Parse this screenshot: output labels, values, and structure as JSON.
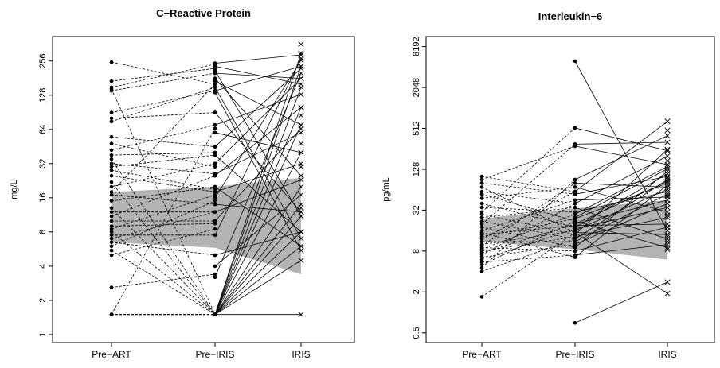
{
  "chart_data": [
    {
      "type": "line",
      "title": "C−Reactive Protein",
      "ylabel": "mg/L",
      "xlabel": "",
      "categories": [
        "Pre−ART",
        "Pre−IRIS",
        "IRIS"
      ],
      "y_scale": "log2",
      "ylim": [
        0.85,
        420
      ],
      "yticks": [
        1,
        2,
        4,
        8,
        16,
        32,
        64,
        128,
        256
      ],
      "ytick_labels": [
        "1",
        "2",
        "4",
        "8",
        "16",
        "32",
        "64",
        "128",
        "256"
      ],
      "band": {
        "color": "#b3b3b3",
        "upper": [
          18,
          20,
          24
        ],
        "lower": [
          6.5,
          5.8,
          3.4
        ]
      },
      "segments": {
        "pre_art_to_pre_iris": [
          [
            250,
            160
          ],
          [
            170,
            220
          ],
          [
            150,
            240
          ],
          [
            145,
            1.5
          ],
          [
            140,
            200
          ],
          [
            90,
            140
          ],
          [
            80,
            90
          ],
          [
            75,
            150
          ],
          [
            55,
            45
          ],
          [
            48,
            30
          ],
          [
            42,
            70
          ],
          [
            38,
            40
          ],
          [
            35,
            1.5
          ],
          [
            32,
            26
          ],
          [
            30,
            38
          ],
          [
            28,
            19
          ],
          [
            25,
            18
          ],
          [
            22,
            1.5
          ],
          [
            20,
            32
          ],
          [
            18,
            160
          ],
          [
            17,
            14
          ],
          [
            15,
            20
          ],
          [
            13,
            1.5
          ],
          [
            12,
            12
          ],
          [
            11,
            25
          ],
          [
            10,
            10
          ],
          [
            9,
            9.5
          ],
          [
            8.5,
            17
          ],
          [
            8,
            1.5
          ],
          [
            7.5,
            7.5
          ],
          [
            7,
            12
          ],
          [
            6.5,
            5
          ],
          [
            6,
            15
          ],
          [
            5.5,
            1.5
          ],
          [
            5,
            8.5
          ],
          [
            2.6,
            3.4
          ],
          [
            1.5,
            1.5
          ],
          [
            1.5,
            1.5
          ],
          [
            1.5,
            65
          ],
          [
            1.5,
            1.5
          ]
        ],
        "pre_iris_to_iris": [
          [
            245,
            290
          ],
          [
            230,
            160
          ],
          [
            210,
            11
          ],
          [
            200,
            180
          ],
          [
            180,
            25
          ],
          [
            170,
            70
          ],
          [
            150,
            7
          ],
          [
            140,
            230
          ],
          [
            135,
            5.5
          ],
          [
            90,
            12
          ],
          [
            70,
            130
          ],
          [
            60,
            40
          ],
          [
            45,
            220
          ],
          [
            38,
            8
          ],
          [
            32,
            180
          ],
          [
            26,
            60
          ],
          [
            25,
            100
          ],
          [
            20,
            6
          ],
          [
            18,
            32
          ],
          [
            16,
            260
          ],
          [
            14,
            12
          ],
          [
            12,
            23
          ],
          [
            10,
            65
          ],
          [
            7.5,
            270
          ],
          [
            5,
            8
          ],
          [
            4,
            17
          ],
          [
            3.2,
            200
          ],
          [
            1.5,
            8
          ],
          [
            1.5,
            70
          ],
          [
            1.5,
            150
          ],
          [
            1.5,
            1.5
          ],
          [
            1.5,
            40
          ],
          [
            1.5,
            14
          ],
          [
            1.5,
            6
          ],
          [
            1.5,
            230
          ],
          [
            1.5,
            20
          ],
          [
            1.5,
            100
          ],
          [
            1.5,
            4.5
          ],
          [
            1.5,
            300
          ],
          [
            1.5,
            11
          ]
        ],
        "iris_extra": [
          360,
          230,
          180,
          130,
          100,
          85,
          48,
          30,
          25,
          13
        ]
      }
    },
    {
      "type": "line",
      "title": "Interleukin−6",
      "ylabel": "pg/mL",
      "xlabel": "",
      "categories": [
        "Pre−ART",
        "Pre−IRIS",
        "IRIS"
      ],
      "y_scale": "log2",
      "ylim": [
        0.36,
        11500
      ],
      "yticks": [
        0.5,
        2,
        8,
        32,
        128,
        512,
        2048,
        8192
      ],
      "ytick_labels": [
        "0.5",
        "2",
        "8",
        "32",
        "128",
        "512",
        "2048",
        "8192"
      ],
      "band": {
        "color": "#b3b3b3",
        "upper": [
          24,
          34,
          45
        ],
        "lower": [
          11,
          8.5,
          6
        ]
      },
      "segments": {
        "pre_art_to_pre_iris": [
          [
            100,
            60
          ],
          [
            90,
            280
          ],
          [
            80,
            55
          ],
          [
            70,
            15
          ],
          [
            60,
            40
          ],
          [
            55,
            22
          ],
          [
            48,
            70
          ],
          [
            40,
            18
          ],
          [
            35,
            30
          ],
          [
            30,
            520
          ],
          [
            28,
            14
          ],
          [
            25,
            35
          ],
          [
            22,
            12
          ],
          [
            20,
            300
          ],
          [
            18,
            9
          ],
          [
            16,
            45
          ],
          [
            15,
            6.5
          ],
          [
            14,
            19
          ],
          [
            13,
            24
          ],
          [
            12,
            60
          ],
          [
            11,
            11
          ],
          [
            10,
            16
          ],
          [
            9.5,
            80
          ],
          [
            9,
            8
          ],
          [
            8.5,
            28
          ],
          [
            8,
            13
          ],
          [
            7.5,
            20
          ],
          [
            7,
            40
          ],
          [
            6.5,
            10
          ],
          [
            6,
            17
          ],
          [
            5.5,
            7
          ],
          [
            5,
            22
          ],
          [
            4.5,
            90
          ],
          [
            4,
            12
          ],
          [
            1.7,
            15
          ]
        ],
        "pre_iris_to_iris": [
          [
            5000,
            16
          ],
          [
            520,
            240
          ],
          [
            300,
            320
          ],
          [
            280,
            150
          ],
          [
            90,
            400
          ],
          [
            80,
            70
          ],
          [
            70,
            30
          ],
          [
            60,
            650
          ],
          [
            55,
            100
          ],
          [
            45,
            50
          ],
          [
            40,
            200
          ],
          [
            35,
            12
          ],
          [
            30,
            60
          ],
          [
            28,
            140
          ],
          [
            24,
            80
          ],
          [
            22,
            9
          ],
          [
            20,
            45
          ],
          [
            19,
            20
          ],
          [
            18,
            110
          ],
          [
            17,
            35
          ],
          [
            16,
            65
          ],
          [
            15,
            14
          ],
          [
            14,
            250
          ],
          [
            13,
            25
          ],
          [
            12,
            90
          ],
          [
            11,
            55
          ],
          [
            10,
            40
          ],
          [
            9,
            120
          ],
          [
            8,
            18
          ],
          [
            7,
            10
          ],
          [
            6.5,
            75
          ],
          [
            0.7,
            2.8
          ],
          [
            15,
            1.9
          ],
          [
            20,
            85
          ],
          [
            25,
            130
          ]
        ],
        "iris_extra": [
          480,
          170,
          95,
          52,
          27,
          13,
          11,
          8.5
        ]
      }
    }
  ]
}
